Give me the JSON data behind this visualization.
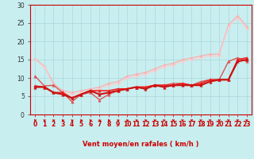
{
  "xlabel": "Vent moyen/en rafales ( km/h )",
  "x": [
    0,
    1,
    2,
    3,
    4,
    5,
    6,
    7,
    8,
    9,
    10,
    11,
    12,
    13,
    14,
    15,
    16,
    17,
    18,
    19,
    20,
    21,
    22,
    23
  ],
  "ylim": [
    0,
    30
  ],
  "yticks": [
    0,
    5,
    10,
    15,
    20,
    25,
    30
  ],
  "background_color": "#c8eef0",
  "grid_color": "#aad8dc",
  "lines": [
    {
      "values": [
        15.2,
        13.2,
        8.5,
        6.5,
        6.0,
        6.5,
        7.0,
        7.5,
        8.5,
        9.0,
        10.5,
        11.0,
        11.5,
        12.5,
        13.5,
        14.0,
        15.0,
        15.5,
        16.0,
        16.5,
        16.5,
        24.5,
        27.0,
        24.0
      ],
      "color": "#ffaaaa",
      "linewidth": 0.8,
      "marker": "^",
      "markersize": 2.5,
      "zorder": 2
    },
    {
      "values": [
        15.0,
        13.0,
        8.0,
        6.0,
        5.5,
        6.0,
        6.5,
        7.0,
        8.0,
        8.5,
        10.0,
        10.5,
        11.0,
        12.0,
        13.0,
        13.5,
        14.5,
        15.0,
        15.5,
        16.0,
        16.0,
        24.0,
        26.5,
        23.5
      ],
      "color": "#ffcccc",
      "linewidth": 0.8,
      "marker": "^",
      "markersize": 2.0,
      "zorder": 2
    },
    {
      "values": [
        10.5,
        7.8,
        8.0,
        6.0,
        3.5,
        5.5,
        6.0,
        4.0,
        5.5,
        6.5,
        7.0,
        7.5,
        7.5,
        8.0,
        8.0,
        8.5,
        8.5,
        8.0,
        9.0,
        9.5,
        9.5,
        14.5,
        15.5,
        14.5
      ],
      "color": "#dd5555",
      "linewidth": 1.0,
      "marker": "^",
      "markersize": 2.5,
      "zorder": 3
    },
    {
      "values": [
        7.8,
        7.5,
        6.0,
        6.0,
        4.5,
        5.5,
        6.5,
        6.5,
        6.5,
        7.0,
        7.0,
        7.5,
        7.5,
        8.0,
        8.0,
        8.0,
        8.5,
        8.0,
        8.5,
        9.5,
        9.5,
        9.5,
        15.0,
        15.5
      ],
      "color": "#ee2222",
      "linewidth": 1.2,
      "marker": "^",
      "markersize": 2.5,
      "zorder": 4
    },
    {
      "values": [
        7.5,
        7.5,
        6.0,
        5.5,
        4.5,
        5.5,
        6.5,
        5.5,
        6.0,
        6.5,
        7.0,
        7.5,
        7.0,
        8.0,
        7.5,
        8.0,
        8.0,
        8.0,
        8.0,
        9.0,
        9.5,
        9.5,
        14.5,
        15.0
      ],
      "color": "#cc1111",
      "linewidth": 1.5,
      "marker": "^",
      "markersize": 2.5,
      "zorder": 5
    }
  ],
  "arrow_color": "#cc0000",
  "axis_fontsize": 6,
  "tick_fontsize": 5.5,
  "arrow_angles": [
    210,
    220,
    225,
    230,
    270,
    240,
    240,
    260,
    265,
    270,
    275,
    300,
    315,
    330,
    335,
    340,
    345,
    350,
    350,
    355,
    355,
    5,
    10,
    15
  ]
}
